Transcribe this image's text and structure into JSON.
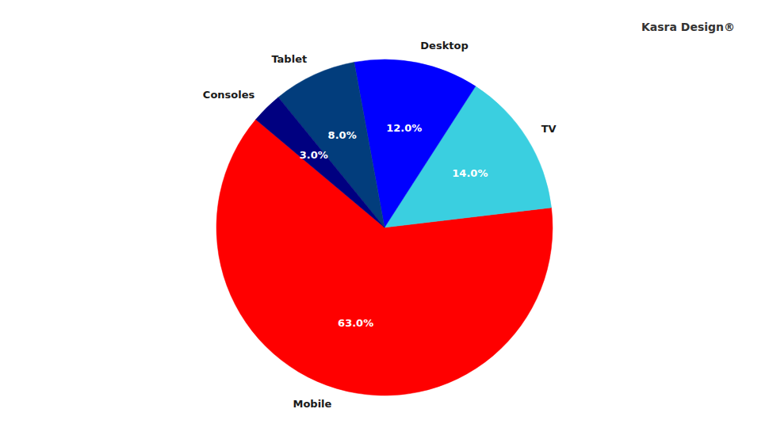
{
  "chart_data": {
    "type": "pie",
    "annotations": [
      "Kasra Design®"
    ],
    "categories": [
      "Mobile",
      "TV",
      "Desktop",
      "Tablet",
      "Consoles"
    ],
    "values": [
      63,
      14,
      12,
      8,
      3
    ],
    "value_labels": [
      "63.0%",
      "14.0%",
      "12.0%",
      "8.0%",
      "3.0%"
    ],
    "colors": [
      "#ff0000",
      "#3acfe0",
      "#0000ff",
      "#023d7c",
      "#000080"
    ],
    "data_labels": true
  }
}
